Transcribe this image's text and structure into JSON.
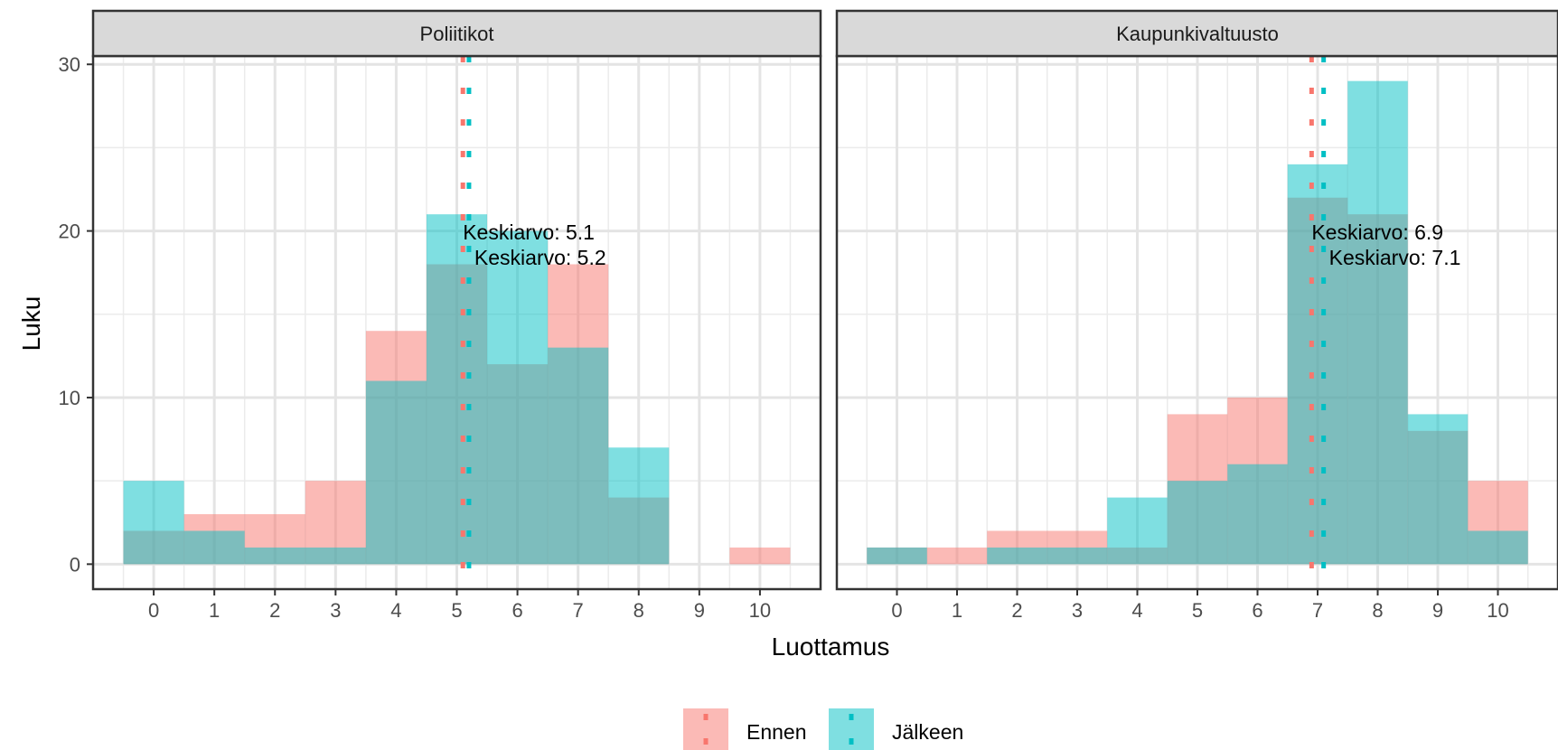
{
  "chart_data": {
    "type": "bar",
    "subtype": "overlaid-histogram-facets",
    "xlabel": "Luottamus",
    "ylabel": "Luku",
    "x_ticks": [
      0,
      1,
      2,
      3,
      4,
      5,
      6,
      7,
      8,
      9,
      10
    ],
    "y_ticks": [
      0,
      10,
      20,
      30
    ],
    "xlim": [
      -1,
      11
    ],
    "ylim": [
      -1.5,
      30.5
    ],
    "grid": true,
    "legend": {
      "position": "bottom",
      "entries": [
        {
          "label": "Ennen",
          "color": "#F8766D"
        },
        {
          "label": "Jälkeen",
          "color": "#00BFC4"
        }
      ]
    },
    "colors": {
      "ennen": "#F8766D",
      "jalkeen": "#00BFC4",
      "overlap": "#7FBCBA"
    },
    "panels": [
      {
        "title": "Poliitikot",
        "series": [
          {
            "name": "Ennen",
            "values": [
              2,
              3,
              3,
              5,
              14,
              18,
              12,
              18,
              4,
              0,
              1
            ],
            "mean": 5.1,
            "mean_label": "Keskiarvo: 5.1"
          },
          {
            "name": "Jälkeen",
            "values": [
              5,
              2,
              1,
              1,
              11,
              21,
              20,
              13,
              7,
              0,
              0
            ],
            "mean": 5.2,
            "mean_label": "Keskiarvo: 5.2"
          }
        ]
      },
      {
        "title": "Kaupunkivaltuusto",
        "series": [
          {
            "name": "Ennen",
            "values": [
              1,
              1,
              2,
              2,
              1,
              9,
              10,
              22,
              21,
              8,
              5
            ],
            "mean": 6.9,
            "mean_label": "Keskiarvo: 6.9"
          },
          {
            "name": "Jälkeen",
            "values": [
              1,
              0,
              1,
              1,
              4,
              5,
              6,
              24,
              29,
              9,
              2
            ],
            "mean": 7.1,
            "mean_label": "Keskiarvo: 7.1"
          }
        ]
      }
    ]
  }
}
